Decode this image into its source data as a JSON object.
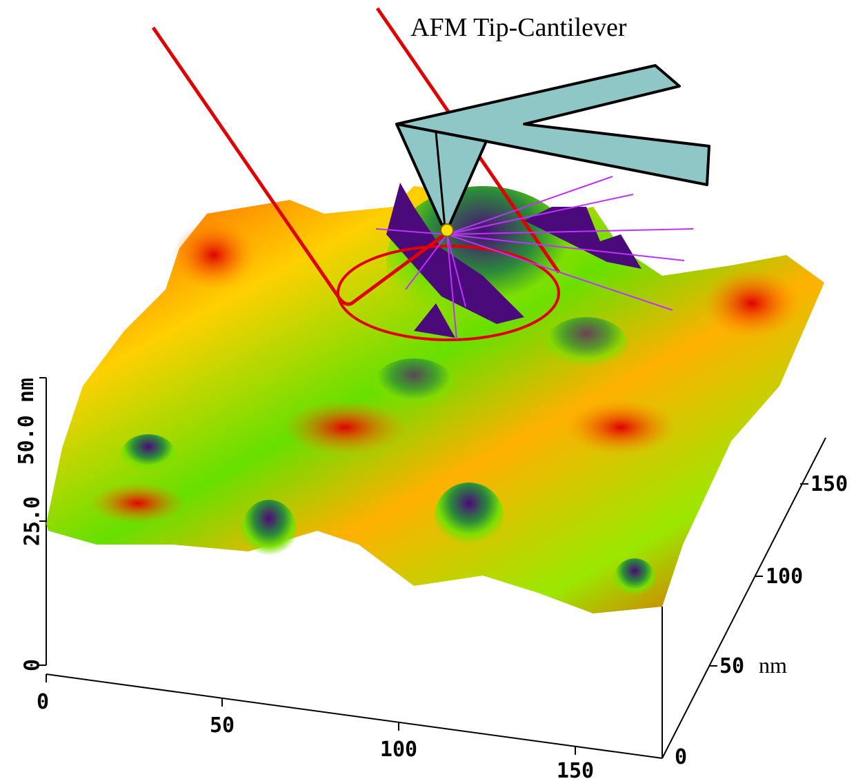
{
  "title": "AFM Tip-Cantilever",
  "z_axis": {
    "top_label": "50.0 nm",
    "ticks": [
      "25.0",
      "0"
    ]
  },
  "x_axis": {
    "ticks": [
      "0",
      "50",
      "100",
      "150"
    ]
  },
  "y_axis": {
    "ticks": [
      "0",
      "50",
      "100",
      "150"
    ],
    "unit": "nm"
  }
}
